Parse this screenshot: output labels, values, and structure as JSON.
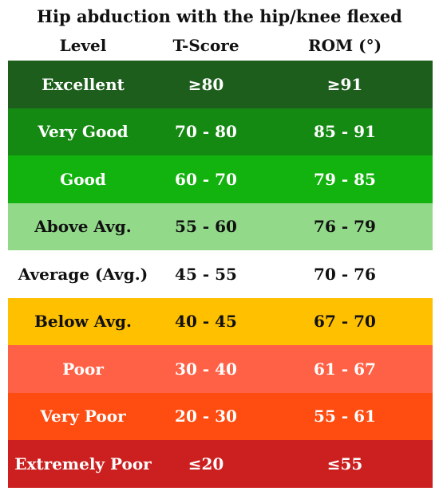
{
  "title": "Hip abduction with the hip/knee flexed",
  "headers": {
    "level": "Level",
    "tscore": "T-Score",
    "rom": "ROM (°)"
  },
  "colors": {
    "excellent": "#1e5e1c",
    "very_good": "#158a13",
    "good": "#12b30e",
    "above_avg": "#92d98a",
    "average": "#ffffff",
    "below_avg": "#ffc000",
    "poor": "#ff6146",
    "very_poor": "#ff4c10",
    "extremely_poor": "#cc1f1f"
  },
  "rows": [
    {
      "level": "Excellent",
      "tscore": "≥80",
      "rom": "≥91",
      "bg": "#1e5e1c",
      "fg": "#ffffff"
    },
    {
      "level": "Very Good",
      "tscore": "70 - 80",
      "rom": "85 - 91",
      "bg": "#158a13",
      "fg": "#ffffff"
    },
    {
      "level": "Good",
      "tscore": "60 - 70",
      "rom": "79 - 85",
      "bg": "#12b30e",
      "fg": "#ffffff"
    },
    {
      "level": "Above Avg.",
      "tscore": "55 - 60",
      "rom": "76 - 79",
      "bg": "#92d98a",
      "fg": "#111111"
    },
    {
      "level": "Average (Avg.)",
      "tscore": "45 - 55",
      "rom": "70 - 76",
      "bg": "#ffffff",
      "fg": "#111111"
    },
    {
      "level": "Below Avg.",
      "tscore": "40 - 45",
      "rom": "67 - 70",
      "bg": "#ffc000",
      "fg": "#111111"
    },
    {
      "level": "Poor",
      "tscore": "30 - 40",
      "rom": "61 - 67",
      "bg": "#ff6146",
      "fg": "#ffffff"
    },
    {
      "level": "Very Poor",
      "tscore": "20 - 30",
      "rom": "55 - 61",
      "bg": "#ff4c10",
      "fg": "#ffffff"
    },
    {
      "level": "Extremely Poor",
      "tscore": "≤20",
      "rom": "≤55",
      "bg": "#cc1f1f",
      "fg": "#ffffff"
    }
  ]
}
